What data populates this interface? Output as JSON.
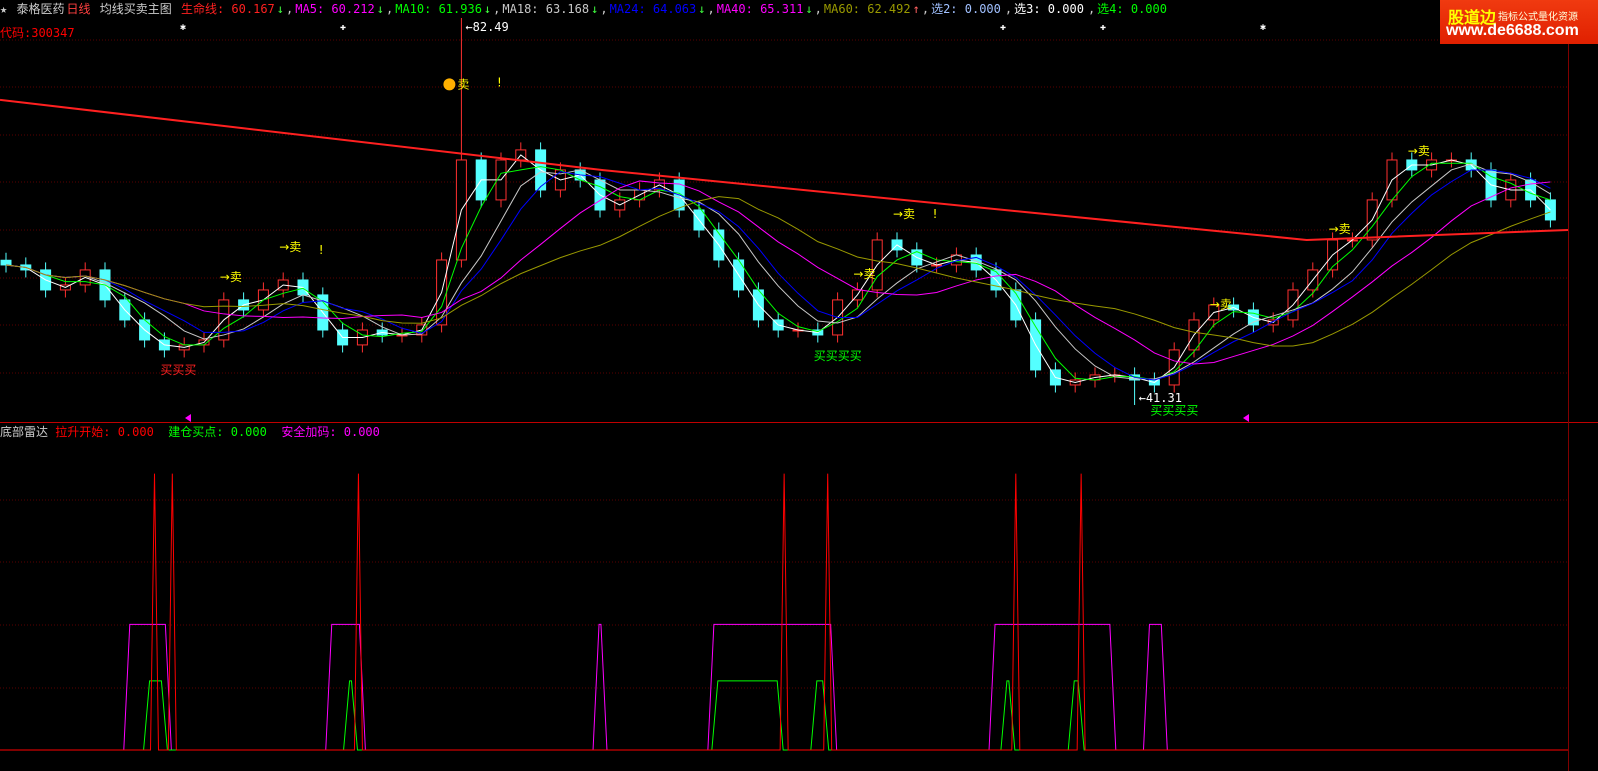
{
  "header": {
    "star": "★",
    "stock_name": "泰格医药",
    "period": "日线",
    "template": "均线买卖主图",
    "indicators": [
      {
        "label": "生命线: 60.167",
        "arrow": "↓",
        "color": "#ff2020"
      },
      {
        "label": "MA5: 60.212",
        "arrow": "↓",
        "color": "#ff00ff"
      },
      {
        "label": "MA10: 61.936",
        "arrow": "↓",
        "color": "#00ff00"
      },
      {
        "label": "MA18: 63.168",
        "arrow": "↓",
        "color": "#c8c8c8"
      },
      {
        "label": "MA24: 64.063",
        "arrow": "↓",
        "color": "#0000ff"
      },
      {
        "label": "MA40: 65.311",
        "arrow": "↓",
        "color": "#ff00ff"
      },
      {
        "label": "MA60: 62.492",
        "arrow": "↑",
        "color": "#999900"
      },
      {
        "label": "选2: 0.000",
        "arrow": "",
        "color": "#a0c0ff"
      },
      {
        "label": "选3: 0.000",
        "arrow": "",
        "color": "#ffffff"
      },
      {
        "label": "选4: 0.000",
        "arrow": "",
        "color": "#00ff00"
      }
    ],
    "code": "代码:300347"
  },
  "sub_header": {
    "title": "底部雷达",
    "items": [
      {
        "label": "拉升开始: 0.000",
        "color": "#ff0000"
      },
      {
        "label": "建仓买点: 0.000",
        "color": "#00ff00"
      },
      {
        "label": "安全加码: 0.000",
        "color": "#ff00ff"
      }
    ]
  },
  "watermark": {
    "brand": "股道边",
    "slogan": "指标公式量化资源",
    "url": "www.de6688.com"
  },
  "chart_data": [
    {
      "type": "candlestick",
      "ylim": [
        39.5,
        84.4
      ],
      "grid": true,
      "high_label": "82.49",
      "low_label": "41.31",
      "high_index": 23,
      "low_index": 57,
      "high": 82.49,
      "low": 41.31,
      "closes": [
        56.21,
        55.68,
        53.55,
        54.08,
        55.68,
        52.49,
        50.36,
        48.23,
        47.17,
        47.7,
        48.23,
        52.49,
        51.42,
        53.55,
        54.61,
        53.02,
        49.29,
        47.7,
        49.29,
        48.76,
        48.76,
        49.83,
        56.74,
        67.38,
        63.13,
        67.38,
        68.45,
        64.19,
        66.32,
        65.25,
        62.06,
        63.13,
        64.19,
        65.25,
        62.06,
        59.93,
        56.74,
        53.55,
        50.36,
        49.29,
        49.29,
        48.76,
        52.49,
        53.55,
        58.87,
        57.81,
        56.21,
        56.21,
        57.27,
        55.68,
        53.55,
        50.36,
        45.04,
        43.44,
        43.97,
        44.51,
        44.51,
        43.97,
        43.44,
        47.17,
        50.36,
        51.95,
        51.42,
        49.83,
        50.36,
        53.55,
        55.68,
        58.87,
        58.87,
        63.13,
        67.38,
        66.32,
        67.38,
        67.38,
        66.32,
        63.13,
        65.25,
        63.13,
        61.0
      ],
      "life_line": {
        "name": "生命线",
        "color": "#ff2020",
        "points": [
          [
            0,
            73.77
          ],
          [
            30,
            66.3
          ],
          [
            60,
            59.93
          ],
          [
            65,
            58.87
          ],
          [
            78,
            59.93
          ]
        ]
      },
      "ma_lines": [
        {
          "name": "MA5",
          "period": 2,
          "color": "#ffffff"
        },
        {
          "name": "MA10",
          "period": 3,
          "color": "#00ff00"
        },
        {
          "name": "MA18",
          "period": 5,
          "color": "#c8c8c8"
        },
        {
          "name": "MA24",
          "period": 6,
          "color": "#0000ff"
        },
        {
          "name": "MA40",
          "period": 10,
          "color": "#ff00ff"
        },
        {
          "name": "MA60",
          "period": 15,
          "color": "#999900"
        }
      ],
      "annotations": [
        {
          "text": "卖",
          "index": 23,
          "price": 75.0,
          "color": "#ffff00",
          "icon": "face"
        },
        {
          "text": "!",
          "index": 25,
          "price": 75.2,
          "color": "#ffff00"
        },
        {
          "text": "→卖",
          "index": 14,
          "price": 57.7,
          "color": "#ffff00"
        },
        {
          "text": "!",
          "index": 16,
          "price": 57.4,
          "color": "#ffff00"
        },
        {
          "text": "→卖",
          "index": 11,
          "price": 54.5,
          "color": "#ffff00"
        },
        {
          "text": "→卖",
          "index": 45,
          "price": 61.2,
          "color": "#ffff00"
        },
        {
          "text": "!",
          "index": 47,
          "price": 61.2,
          "color": "#ffff00"
        },
        {
          "text": "→卖",
          "index": 43,
          "price": 54.8,
          "color": "#ffff00"
        },
        {
          "text": "→卖",
          "index": 67,
          "price": 59.6,
          "color": "#ffff00"
        },
        {
          "text": "→卖",
          "index": 71,
          "price": 67.9,
          "color": "#ffff00"
        },
        {
          "text": "→卖",
          "index": 61,
          "price": 51.6,
          "color": "#ffff00"
        },
        {
          "text": "买买买",
          "index": 8,
          "price": 44.6,
          "color": "#ff2020"
        },
        {
          "text": "买买买买",
          "index": 41,
          "price": 46.1,
          "color": "#00ff00"
        },
        {
          "text": "买买买买",
          "index": 58,
          "price": 40.3,
          "color": "#00ff00"
        }
      ],
      "markers": [
        {
          "symbol": "✱",
          "index": 9
        },
        {
          "symbol": "✚",
          "index": 17
        },
        {
          "symbol": "✚",
          "index": 50
        },
        {
          "symbol": "✚",
          "index": 55
        },
        {
          "symbol": "✱",
          "index": 63
        }
      ]
    },
    {
      "type": "line",
      "ylim": [
        0,
        5
      ],
      "series": [
        {
          "name": "安全加码",
          "color": "#ff00ff",
          "value": 2,
          "windows": [
            [
              6.1,
              8.2
            ],
            [
              16.3,
              18.0
            ],
            [
              29.8,
              30.2
            ],
            [
              35.6,
              41.8
            ],
            [
              49.8,
              55.9
            ],
            [
              57.6,
              58.5
            ]
          ]
        },
        {
          "name": "建仓买点",
          "color": "#00ff00",
          "value": 1.1,
          "windows": [
            [
              7.1,
              8.0
            ],
            [
              17.2,
              17.6
            ],
            [
              35.8,
              39.1
            ],
            [
              40.8,
              41.4
            ],
            [
              50.4,
              50.8
            ],
            [
              53.8,
              54.3
            ]
          ]
        },
        {
          "name": "拉升开始",
          "color": "#ff0000",
          "value": 4.4,
          "spikes": [
            7.5,
            8.4,
            17.8,
            39.3,
            41.5,
            51.0,
            54.3
          ]
        }
      ]
    }
  ]
}
